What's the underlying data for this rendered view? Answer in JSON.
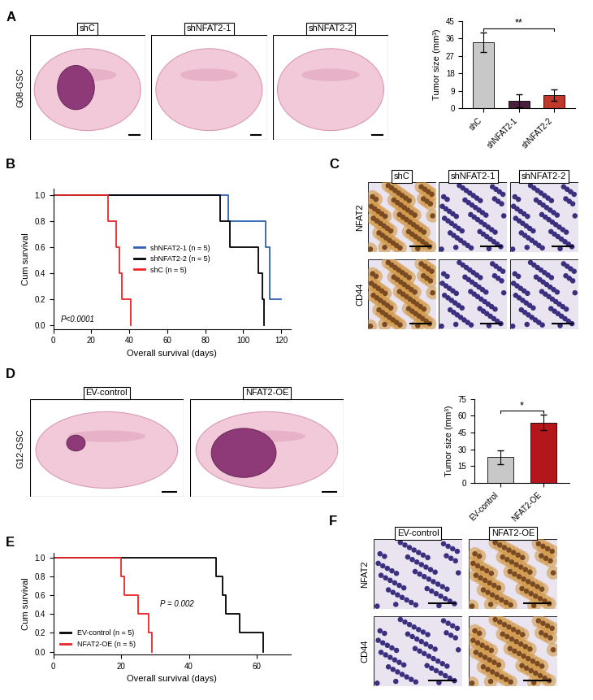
{
  "panel_labels": [
    "A",
    "B",
    "C",
    "D",
    "E",
    "F"
  ],
  "chart_data": [
    {
      "type": "bar",
      "categories": [
        "shC",
        "shNFAT2-1",
        "shNFAT2-2"
      ],
      "values": [
        34,
        4,
        7
      ],
      "errors": [
        5,
        3.5,
        3
      ],
      "colors": [
        "#c8c8c8",
        "#4b1f3f",
        "#c0392b"
      ],
      "y_label": "Tumor size (mm³)",
      "ylim": [
        0,
        45
      ],
      "yticks": [
        0,
        9,
        18,
        27,
        36,
        45
      ],
      "significance": {
        "from": "shC",
        "to": "shNFAT2-2",
        "label": "**"
      }
    },
    {
      "type": "line",
      "line_style": "step",
      "x_label": "Overall survival (days)",
      "y_label": "Cum survival",
      "xlim": [
        0,
        125
      ],
      "xticks": [
        0,
        20,
        40,
        60,
        80,
        100,
        120
      ],
      "ylim": [
        -0.03,
        1.05
      ],
      "yticks": [
        {
          "value": 0,
          "label": "0.0"
        },
        {
          "value": 0.2,
          "label": "0.2"
        },
        {
          "value": 0.4,
          "label": "0.4"
        },
        {
          "value": 0.6,
          "label": "0.6"
        },
        {
          "value": 0.8,
          "label": "0.8"
        },
        {
          "value": 1.0,
          "label": "1.0"
        }
      ],
      "legend": "center",
      "annotation": "P<0.0001",
      "series": [
        {
          "name": "shNFAT2-1 (n = 5)",
          "color": "#2f5fb3",
          "x": [
            0,
            92,
            112,
            114,
            120
          ],
          "values": [
            1.0,
            0.8,
            0.6,
            0.2,
            0.2
          ]
        },
        {
          "name": "shNFAT2-2 (n = 5)",
          "color": "#000000",
          "x": [
            0,
            88,
            93,
            108,
            110,
            111
          ],
          "values": [
            1.0,
            0.8,
            0.6,
            0.4,
            0.2,
            0.0
          ]
        },
        {
          "name": "shC (n = 5)",
          "color": "#e8262a",
          "x": [
            0,
            29,
            33,
            35,
            36,
            41
          ],
          "values": [
            1.0,
            0.8,
            0.6,
            0.4,
            0.2,
            0.0
          ]
        }
      ]
    },
    {
      "type": "bar",
      "categories": [
        "EV-control",
        "NFAT2-OE"
      ],
      "values": [
        23,
        54
      ],
      "errors": [
        6,
        7
      ],
      "colors": [
        "#c8c8c8",
        "#b3171c"
      ],
      "y_label": "Tumor size (mm³)",
      "ylim": [
        0,
        75
      ],
      "yticks": [
        0,
        15,
        30,
        45,
        60,
        75
      ],
      "significance": {
        "from": "EV-control",
        "to": "NFAT2-OE",
        "label": "*"
      }
    },
    {
      "type": "line",
      "line_style": "step",
      "x_label": "Overall survival (days)",
      "y_label": "Cum survival",
      "xlim": [
        0,
        70
      ],
      "xticks": [
        0,
        20,
        40,
        60
      ],
      "ylim": [
        -0.03,
        1.05
      ],
      "yticks": [
        {
          "value": 0,
          "label": "0.0"
        },
        {
          "value": 0.2,
          "label": "0.2"
        },
        {
          "value": 0.4,
          "label": "0.4"
        },
        {
          "value": 0.6,
          "label": "0.6"
        },
        {
          "value": 0.8,
          "label": "0.8"
        },
        {
          "value": 1.0,
          "label": "1.0"
        }
      ],
      "legend": "lower left",
      "annotation": "P = 0.002",
      "series": [
        {
          "name": "EV-control (n = 5)",
          "color": "#000000",
          "x": [
            0,
            48,
            50,
            51,
            55,
            62
          ],
          "values": [
            1.0,
            0.8,
            0.6,
            0.4,
            0.2,
            0.0
          ]
        },
        {
          "name": "NFAT2-OE (n = 5)",
          "color": "#e8262a",
          "x": [
            0,
            20,
            21,
            25,
            28,
            29
          ],
          "values": [
            1.0,
            0.8,
            0.6,
            0.4,
            0.2,
            0.0
          ]
        }
      ]
    }
  ],
  "images": {
    "A": {
      "row_label": "G08-GSC",
      "columns": [
        "shC",
        "shNFAT2-1",
        "shNFAT2-2"
      ]
    },
    "C": {
      "columns": [
        "shC",
        "shNFAT2-1",
        "shNFAT2-2"
      ],
      "rows": [
        "NFAT2",
        "CD44"
      ]
    },
    "D": {
      "row_label": "G12-GSC",
      "columns": [
        "EV-control",
        "NFAT2-OE"
      ]
    },
    "F": {
      "columns": [
        "EV-control",
        "NFAT2-OE"
      ],
      "rows": [
        "NFAT2",
        "CD44"
      ]
    }
  }
}
